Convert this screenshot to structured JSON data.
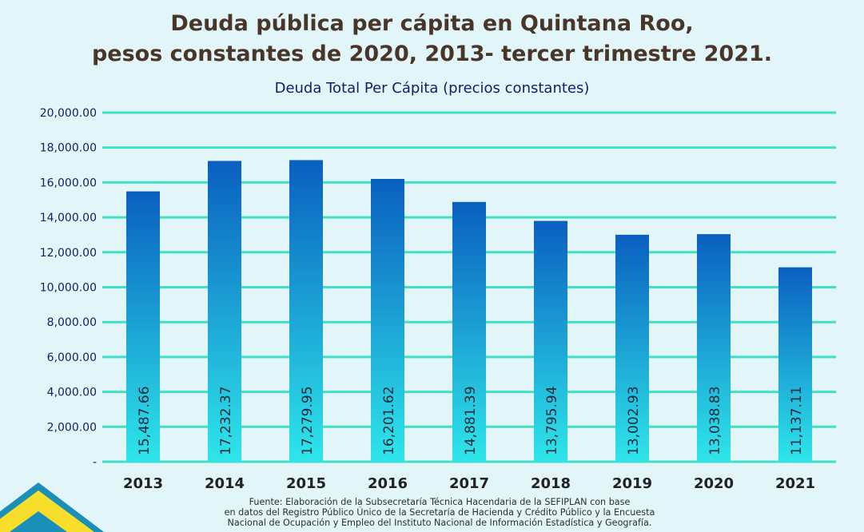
{
  "title_line1": "Deuda pública per cápita en Quintana Roo,",
  "title_line2": "pesos constantes de 2020, 2013- tercer trimestre 2021.",
  "source": [
    "Fuente: Elaboración de la Subsecretaría Técnica Hacendaria de la SEFIPLAN con base",
    "en datos del Registro Público Único de la Secretaría de Hacienda y Crédito Público y la Encuesta",
    "Nacional de Ocupación y Empleo del Instituto Nacional de Información Estadística y Geografía."
  ],
  "colors": {
    "bar_top": "#0a5fc0",
    "bar_bottom": "#2ee6ea",
    "grid": "#3fe0c6",
    "title": "#4a3628",
    "subtitle": "#0f1f63"
  },
  "chart_data": {
    "type": "bar",
    "title": "Deuda Total Per Cápita (precios constantes)",
    "categories": [
      "2013",
      "2014",
      "2015",
      "2016",
      "2017",
      "2018",
      "2019",
      "2020",
      "2021"
    ],
    "values": [
      15487.66,
      17232.37,
      17279.95,
      16201.62,
      14881.39,
      13795.94,
      13002.93,
      13038.83,
      11137.11
    ],
    "value_labels": [
      "15,487.66",
      "17,232.37",
      "17,279.95",
      "16,201.62",
      "14,881.39",
      "13,795.94",
      "13,002.93",
      "13,038.83",
      "11,137.11"
    ],
    "ylim": [
      0,
      20000
    ],
    "y_ticks": [
      0,
      2000,
      4000,
      6000,
      8000,
      10000,
      12000,
      14000,
      16000,
      18000,
      20000
    ],
    "y_tick_labels": [
      "-",
      "2,000.00",
      "4,000.00",
      "6,000.00",
      "8,000.00",
      "10,000.00",
      "12,000.00",
      "14,000.00",
      "16,000.00",
      "18,000.00",
      "20,000.00"
    ],
    "xlabel": "",
    "ylabel": "",
    "grid": true
  }
}
